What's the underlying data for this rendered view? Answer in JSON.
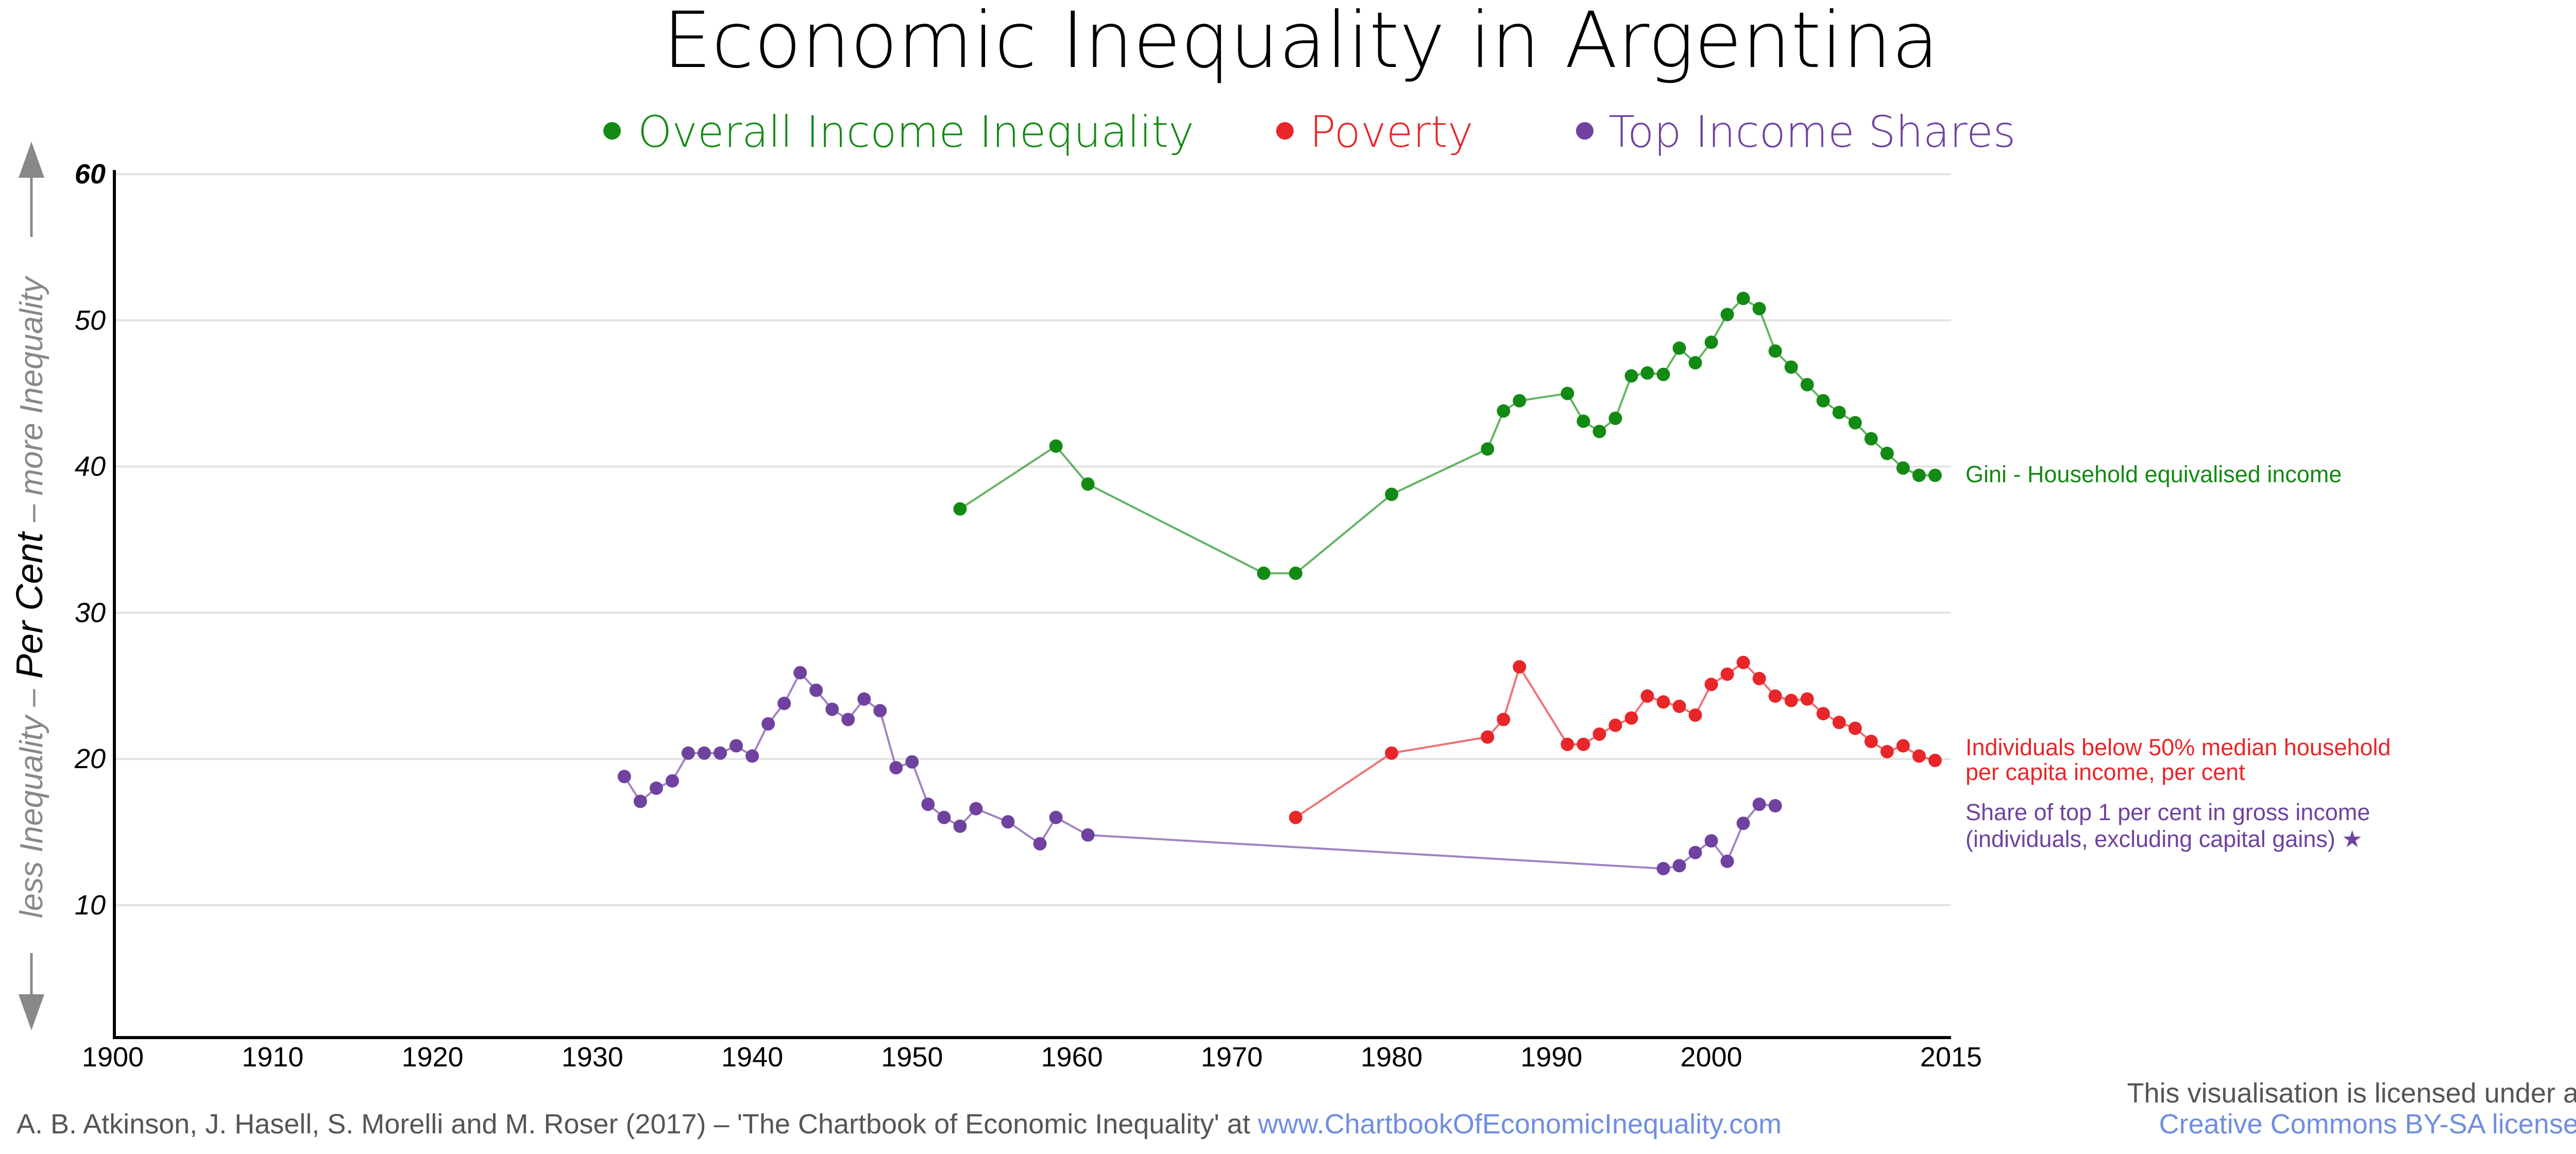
{
  "title": "Economic Inequality in Argentina",
  "legend": [
    {
      "label": "Overall Income Inequality",
      "color": "#138a13"
    },
    {
      "label": "Poverty",
      "color": "#e8262a"
    },
    {
      "label": "Top Income Shares",
      "color": "#6f42a0"
    }
  ],
  "y_axis_label": {
    "less": "less Inequality –",
    "main": " Per Cent ",
    "more": "– more Inequality"
  },
  "footer": {
    "credit": "A. B. Atkinson, J. Hasell, S. Morelli and M. Roser (2017) – 'The Chartbook of Economic Inequality' at ",
    "credit_link": "www.ChartbookOfEconomicInequality.com",
    "license_line1": "This visualisation is licensed under a",
    "license_link": "Creative Commons BY-SA license"
  },
  "chart_data": {
    "type": "line",
    "title": "Economic Inequality in Argentina",
    "ylabel": "Per Cent",
    "xlim": [
      1900,
      2015
    ],
    "ylim": [
      0,
      60
    ],
    "x_ticks": [
      "1900",
      "1910",
      "1920",
      "1930",
      "1940",
      "1950",
      "1960",
      "1970",
      "1980",
      "1990",
      "2000",
      "2015"
    ],
    "y_ticks": [
      "10",
      "20",
      "30",
      "40",
      "50",
      "60"
    ],
    "grid": true,
    "series": [
      {
        "name": "Gini - Household equivalised income",
        "color": "#138a13",
        "x": [
          1953,
          1959,
          1961,
          1972,
          1974,
          1980,
          1986,
          1987,
          1988,
          1991,
          1992,
          1993,
          1994,
          1995,
          1996,
          1997,
          1998,
          1999,
          2000,
          2001,
          2002,
          2003,
          2004,
          2005,
          2006,
          2007,
          2008,
          2009,
          2010,
          2011,
          2012,
          2013,
          2014
        ],
        "y": [
          37.1,
          41.4,
          38.8,
          32.7,
          32.7,
          38.1,
          41.2,
          43.8,
          44.5,
          45.0,
          43.1,
          42.4,
          43.3,
          46.2,
          46.4,
          46.3,
          48.1,
          47.1,
          48.5,
          50.4,
          51.5,
          50.8,
          47.9,
          46.8,
          45.6,
          44.5,
          43.7,
          43.0,
          41.9,
          40.9,
          39.9,
          39.4,
          39.4
        ]
      },
      {
        "name": "Individuals below 50% median household per capita income, per cent",
        "label_lines": [
          "Individuals below 50% median household",
          "per capita income, per cent"
        ],
        "color": "#e8262a",
        "x": [
          1974,
          1980,
          1986,
          1987,
          1988,
          1991,
          1992,
          1993,
          1994,
          1995,
          1996,
          1997,
          1998,
          1999,
          2000,
          2001,
          2002,
          2003,
          2004,
          2005,
          2006,
          2007,
          2008,
          2009,
          2010,
          2011,
          2012,
          2013,
          2014
        ],
        "y": [
          16.0,
          20.4,
          21.5,
          22.7,
          26.3,
          21.0,
          21.0,
          21.7,
          22.3,
          22.8,
          24.3,
          23.9,
          23.6,
          23.0,
          25.1,
          25.8,
          26.6,
          25.5,
          24.3,
          24.0,
          24.1,
          23.1,
          22.5,
          22.1,
          21.2,
          20.5,
          20.9,
          20.2,
          19.9
        ]
      },
      {
        "name": "Share of top 1 per cent in gross income (individuals, excluding capital gains) ★",
        "label_lines": [
          "Share of top 1 per cent in gross income",
          "(individuals, excluding capital gains) ★"
        ],
        "color": "#6f42a0",
        "x": [
          1932,
          1933,
          1934,
          1935,
          1936,
          1937,
          1938,
          1939,
          1940,
          1941,
          1942,
          1943,
          1944,
          1945,
          1946,
          1947,
          1948,
          1949,
          1950,
          1951,
          1952,
          1953,
          1954,
          1956,
          1958,
          1959,
          1961,
          1997,
          1998,
          1999,
          2000,
          2001,
          2002,
          2003,
          2004
        ],
        "y": [
          18.8,
          17.1,
          18.0,
          18.5,
          20.4,
          20.4,
          20.4,
          20.9,
          20.2,
          22.4,
          23.8,
          25.9,
          24.7,
          23.4,
          22.7,
          24.1,
          23.3,
          19.4,
          19.8,
          16.9,
          16.0,
          15.4,
          16.6,
          15.7,
          14.2,
          16.0,
          14.8,
          12.5,
          12.7,
          13.6,
          14.4,
          13.0,
          15.6,
          16.9,
          16.8
        ]
      }
    ]
  }
}
